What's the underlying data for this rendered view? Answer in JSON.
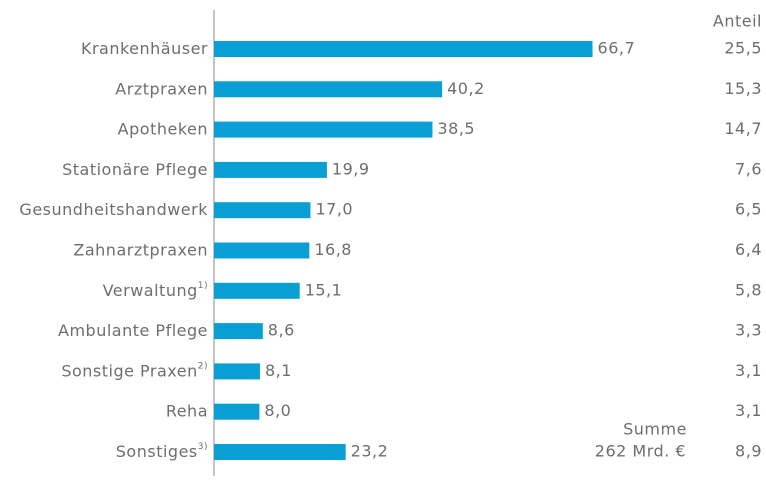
{
  "chart_data": {
    "type": "barh",
    "categories": [
      "Krankenhäuser",
      "Arztpraxen",
      "Apotheken",
      "Stationäre Pflege",
      "Gesundheitshandwerk",
      "Zahnarztpraxen",
      "Verwaltung",
      "Ambulante Pflege",
      "Sonstige Praxen",
      "Reha",
      "Sonstiges"
    ],
    "category_notes": [
      null,
      null,
      null,
      null,
      null,
      null,
      "1)",
      null,
      "2)",
      null,
      "3)"
    ],
    "values": [
      66.7,
      40.2,
      38.5,
      19.9,
      17.0,
      16.8,
      15.1,
      8.6,
      8.1,
      8.0,
      23.2
    ],
    "value_labels": [
      "66,7",
      "40,2",
      "38,5",
      "19,9",
      "17,0",
      "16,8",
      "15,1",
      "8,6",
      "8,1",
      "8,0",
      "23,2"
    ],
    "color": "#0a9fd4",
    "xlim": [
      0,
      80
    ],
    "share_title": "Anteil",
    "shares": [
      25.5,
      15.3,
      14.7,
      7.6,
      6.5,
      6.4,
      5.8,
      3.3,
      3.1,
      3.1,
      8.9
    ],
    "share_labels": [
      "25,5",
      "15,3",
      "14,7",
      "7,6",
      "6,5",
      "6,4",
      "5,8",
      "3,3",
      "3,1",
      "3,1",
      "8,9"
    ],
    "sum_title": "Summe",
    "sum_label": "262 Mrd. €"
  }
}
